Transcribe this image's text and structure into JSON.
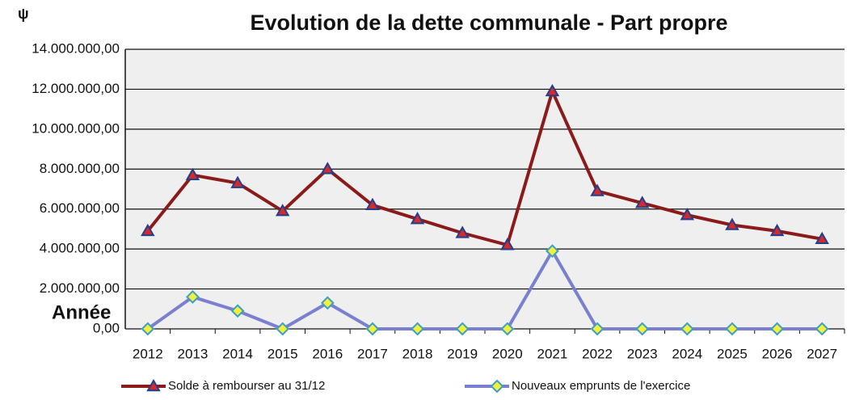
{
  "chart_data": {
    "type": "line",
    "title": "Evolution de la dette communale - Part propre",
    "unit_label": "ψ",
    "x_label": "Année",
    "categories": [
      "2012",
      "2013",
      "2014",
      "2015",
      "2016",
      "2017",
      "2018",
      "2019",
      "2020",
      "2021",
      "2022",
      "2023",
      "2024",
      "2025",
      "2026",
      "2027"
    ],
    "series": [
      {
        "name": "Solde à rembourser au 31/12",
        "color": "#8b1a1a",
        "marker": "triangle",
        "marker_color": "#d62a2a",
        "marker_edge": "#1f3f8f",
        "values": [
          4900000,
          7700000,
          7300000,
          5900000,
          8000000,
          6200000,
          5500000,
          4800000,
          4200000,
          11900000,
          6900000,
          6300000,
          5700000,
          5200000,
          4900000,
          4500000
        ]
      },
      {
        "name": "Nouveaux emprunts de l'exercice",
        "color": "#7a7fd0",
        "marker": "diamond",
        "marker_color": "#f4f03a",
        "marker_edge": "#3aa0c8",
        "values": [
          0,
          1600000,
          900000,
          0,
          1300000,
          0,
          0,
          0,
          0,
          3900000,
          0,
          0,
          0,
          0,
          0,
          0
        ]
      }
    ],
    "ylim": [
      0,
      14000000
    ],
    "yticks": [
      {
        "value": 0,
        "label": "0,00"
      },
      {
        "value": 2000000,
        "label": "2.000.000,00"
      },
      {
        "value": 4000000,
        "label": "4.000.000,00"
      },
      {
        "value": 6000000,
        "label": "6.000.000,00"
      },
      {
        "value": 8000000,
        "label": "8.000.000,00"
      },
      {
        "value": 10000000,
        "label": "10.000.000,00"
      },
      {
        "value": 12000000,
        "label": "12.000.000,00"
      },
      {
        "value": 14000000,
        "label": "14.000.000,00"
      }
    ],
    "grid": true
  }
}
